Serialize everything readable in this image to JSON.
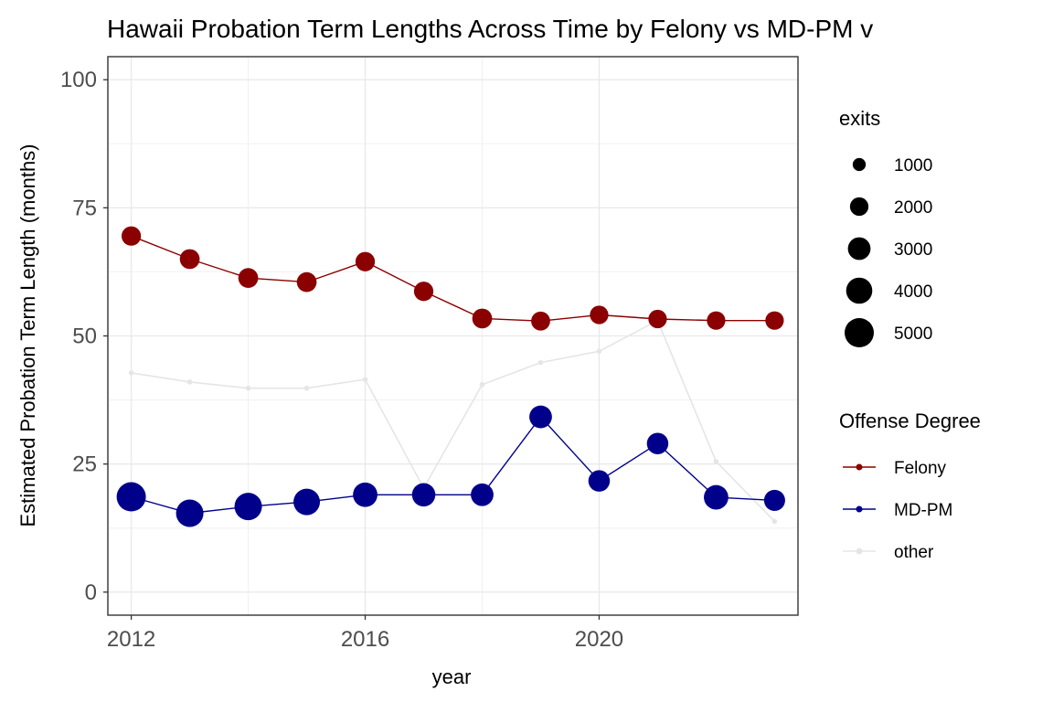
{
  "chart_data": {
    "type": "line",
    "title": "Hawaii Probation Term Lengths Across Time by Felony vs MD-PM v",
    "xlabel": "year",
    "ylabel": "Estimated Probation Term Length (months)",
    "xlim": [
      2011.6,
      2023.4
    ],
    "ylim": [
      -4.5,
      104.5
    ],
    "x_ticks": [
      2012,
      2016,
      2020
    ],
    "y_ticks": [
      0,
      25,
      50,
      75,
      100
    ],
    "grid": true,
    "legend_position": "right",
    "x": [
      2012,
      2013,
      2014,
      2015,
      2016,
      2017,
      2018,
      2019,
      2020,
      2021,
      2022,
      2023
    ],
    "series": [
      {
        "name": "other",
        "color": "#e5e5e5",
        "values": [
          42.8,
          41.0,
          39.8,
          39.8,
          41.5,
          20.3,
          40.5,
          44.8,
          47.0,
          53.0,
          25.5,
          13.8
        ],
        "exits": [
          150,
          150,
          150,
          150,
          150,
          150,
          150,
          150,
          150,
          150,
          150,
          150
        ]
      },
      {
        "name": "Felony",
        "color": "#8b0000",
        "values": [
          69.5,
          65.0,
          61.3,
          60.5,
          64.5,
          58.7,
          53.4,
          52.9,
          54.1,
          53.3,
          53.0,
          53.0
        ],
        "exits": [
          2200,
          2300,
          2300,
          2300,
          2200,
          2200,
          2300,
          2100,
          2000,
          2000,
          2000,
          2000
        ]
      },
      {
        "name": "MD-PM",
        "color": "#00008b",
        "values": [
          18.6,
          15.4,
          16.7,
          17.6,
          19.0,
          19.0,
          19.0,
          34.2,
          21.7,
          29.0,
          18.5,
          17.9
        ],
        "exits": [
          5000,
          4400,
          4400,
          4100,
          3500,
          3200,
          3000,
          3000,
          2700,
          2700,
          3500,
          2600
        ]
      }
    ],
    "size_legend": {
      "title": "exits",
      "breaks": [
        1000,
        2000,
        3000,
        4000,
        5000
      ],
      "labels": [
        "1000",
        "2000",
        "3000",
        "4000",
        "5000"
      ]
    },
    "color_legend": {
      "title": "Offense Degree",
      "entries": [
        {
          "label": "Felony",
          "color": "#8b0000"
        },
        {
          "label": "MD-PM",
          "color": "#00008b"
        },
        {
          "label": "other",
          "color": "#e5e5e5"
        }
      ]
    }
  }
}
